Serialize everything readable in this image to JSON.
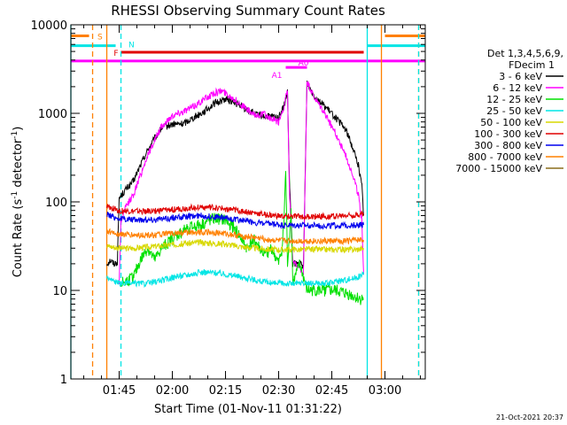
{
  "chart_data": {
    "type": "line",
    "title": "RHESSI Observing Summary Count Rates",
    "xlabel": "Start Time (01-Nov-11 01:31:22)",
    "ylabel": "Count Rate (s⁻¹ detector⁻¹)",
    "ylabel_parts": [
      "Count Rate (s",
      "-1",
      " detector",
      "-1",
      ")"
    ],
    "yscale": "log",
    "ylim": [
      1,
      10000
    ],
    "xlim": [
      "01:31:22",
      "03:11:22"
    ],
    "x_ticks": [
      "01:45",
      "02:00",
      "02:15",
      "02:30",
      "02:45",
      "03:00"
    ],
    "y_ticks": [
      "1",
      "10",
      "100",
      "1000",
      "10000"
    ],
    "legend_title": [
      "Det 1,3,4,5,6,9,",
      "FDecim 1"
    ],
    "legend_position": "right",
    "footer": "21-Oct-2021 20:37",
    "colors": {
      "3 - 6 keV": "#000000",
      "6 - 12 keV": "#ff00ff",
      "12 - 25 keV": "#00e000",
      "25 - 50 keV": "#00e5e5",
      "50 - 100 keV": "#d8d800",
      "100 - 300 keV": "#e00000",
      "300 - 800 keV": "#0000ee",
      "800 - 7000 keV": "#ff8000",
      "7000 - 15000 keV": "#8b6f1c"
    },
    "series": [
      {
        "name": "3 - 6 keV",
        "points": [
          [
            "01:41:30",
            20
          ],
          [
            "01:42:30",
            22
          ],
          [
            "01:43:30",
            20
          ],
          [
            "01:44:30",
            21
          ],
          [
            "01:45:00",
            110
          ],
          [
            "01:47:00",
            140
          ],
          [
            "01:49:00",
            170
          ],
          [
            "01:51:00",
            260
          ],
          [
            "01:53:00",
            380
          ],
          [
            "01:55:00",
            520
          ],
          [
            "01:57:00",
            680
          ],
          [
            "02:00:00",
            750
          ],
          [
            "02:03:00",
            760
          ],
          [
            "02:06:00",
            900
          ],
          [
            "02:09:00",
            1050
          ],
          [
            "02:12:00",
            1300
          ],
          [
            "02:15:00",
            1450
          ],
          [
            "02:18:00",
            1300
          ],
          [
            "02:21:00",
            1100
          ],
          [
            "02:24:00",
            950
          ],
          [
            "02:27:00",
            920
          ],
          [
            "02:30:00",
            900
          ],
          [
            "02:31:30",
            1200
          ],
          [
            "02:32:30",
            1700
          ],
          [
            "02:33:00",
            200
          ],
          [
            "02:34:00",
            20
          ],
          [
            "02:36:00",
            20
          ],
          [
            "02:37:00",
            18
          ],
          [
            "02:38:00",
            2200
          ],
          [
            "02:40:00",
            1600
          ],
          [
            "02:43:00",
            1200
          ],
          [
            "02:46:00",
            900
          ],
          [
            "02:49:00",
            650
          ],
          [
            "02:51:00",
            400
          ],
          [
            "02:52:30",
            260
          ],
          [
            "02:53:30",
            150
          ],
          [
            "02:54:00",
            70
          ]
        ]
      },
      {
        "name": "6 - 12 keV",
        "points": [
          [
            "01:45:00",
            12
          ],
          [
            "01:45:30",
            60
          ],
          [
            "01:47:00",
            90
          ],
          [
            "01:49:00",
            120
          ],
          [
            "01:51:00",
            200
          ],
          [
            "01:53:00",
            330
          ],
          [
            "01:55:00",
            500
          ],
          [
            "01:57:00",
            700
          ],
          [
            "02:00:00",
            950
          ],
          [
            "02:03:00",
            1050
          ],
          [
            "02:06:00",
            1200
          ],
          [
            "02:09:00",
            1450
          ],
          [
            "02:12:00",
            1700
          ],
          [
            "02:14:00",
            1800
          ],
          [
            "02:17:00",
            1500
          ],
          [
            "02:20:00",
            1200
          ],
          [
            "02:23:00",
            950
          ],
          [
            "02:26:00",
            980
          ],
          [
            "02:28:00",
            850
          ],
          [
            "02:30:00",
            800
          ],
          [
            "02:31:30",
            1200
          ],
          [
            "02:32:30",
            1800
          ],
          [
            "02:33:00",
            150
          ],
          [
            "02:34:00",
            20
          ],
          [
            "02:36:00",
            18
          ],
          [
            "02:37:00",
            15
          ],
          [
            "02:38:00",
            2300
          ],
          [
            "02:40:00",
            1500
          ],
          [
            "02:43:00",
            1000
          ],
          [
            "02:46:00",
            600
          ],
          [
            "02:49:00",
            330
          ],
          [
            "02:51:00",
            200
          ],
          [
            "02:52:30",
            120
          ],
          [
            "02:53:30",
            60
          ],
          [
            "02:54:00",
            15
          ]
        ]
      },
      {
        "name": "12 - 25 keV",
        "points": [
          [
            "01:45:30",
            12
          ],
          [
            "01:49:00",
            14
          ],
          [
            "01:51:00",
            22
          ],
          [
            "01:53:00",
            30
          ],
          [
            "01:55:00",
            22
          ],
          [
            "01:57:00",
            30
          ],
          [
            "02:00:00",
            38
          ],
          [
            "02:04:00",
            50
          ],
          [
            "02:08:00",
            55
          ],
          [
            "02:12:00",
            65
          ],
          [
            "02:15:00",
            62
          ],
          [
            "02:18:00",
            48
          ],
          [
            "02:21:00",
            30
          ],
          [
            "02:23:00",
            38
          ],
          [
            "02:26:00",
            25
          ],
          [
            "02:28:00",
            30
          ],
          [
            "02:30:00",
            20
          ],
          [
            "02:31:00",
            30
          ],
          [
            "02:31:30",
            60
          ],
          [
            "02:32:00",
            230
          ],
          [
            "02:32:30",
            20
          ],
          [
            "02:33:30",
            80
          ],
          [
            "02:34:00",
            12
          ],
          [
            "02:36:00",
            20
          ],
          [
            "02:38:00",
            10
          ],
          [
            "02:42:00",
            10
          ],
          [
            "02:46:00",
            10
          ],
          [
            "02:50:00",
            9
          ],
          [
            "02:53:00",
            8
          ],
          [
            "02:54:00",
            8
          ]
        ]
      },
      {
        "name": "25 - 50 keV",
        "points": [
          [
            "01:41:30",
            14
          ],
          [
            "01:45:00",
            12
          ],
          [
            "01:49:00",
            12
          ],
          [
            "01:53:00",
            12
          ],
          [
            "01:57:00",
            13
          ],
          [
            "02:00:00",
            14
          ],
          [
            "02:04:00",
            15
          ],
          [
            "02:08:00",
            16
          ],
          [
            "02:12:00",
            16
          ],
          [
            "02:16:00",
            15
          ],
          [
            "02:20:00",
            14
          ],
          [
            "02:24:00",
            13
          ],
          [
            "02:28:00",
            12
          ],
          [
            "02:32:00",
            12
          ],
          [
            "02:36:00",
            12
          ],
          [
            "02:40:00",
            12
          ],
          [
            "02:44:00",
            12
          ],
          [
            "02:48:00",
            13
          ],
          [
            "02:52:00",
            14
          ],
          [
            "02:54:00",
            15
          ]
        ]
      },
      {
        "name": "50 - 100 keV",
        "points": [
          [
            "01:41:30",
            32
          ],
          [
            "01:45:00",
            30
          ],
          [
            "01:49:00",
            30
          ],
          [
            "01:53:00",
            31
          ],
          [
            "01:57:00",
            32
          ],
          [
            "02:00:00",
            33
          ],
          [
            "02:04:00",
            34
          ],
          [
            "02:08:00",
            35
          ],
          [
            "02:12:00",
            34
          ],
          [
            "02:16:00",
            33
          ],
          [
            "02:20:00",
            31
          ],
          [
            "02:24:00",
            30
          ],
          [
            "02:28:00",
            29
          ],
          [
            "02:32:00",
            29
          ],
          [
            "02:36:00",
            29
          ],
          [
            "02:40:00",
            29
          ],
          [
            "02:44:00",
            29
          ],
          [
            "02:48:00",
            29
          ],
          [
            "02:52:00",
            29
          ],
          [
            "02:54:00",
            30
          ]
        ]
      },
      {
        "name": "100 - 300 keV",
        "points": [
          [
            "01:41:30",
            88
          ],
          [
            "01:45:00",
            80
          ],
          [
            "01:49:00",
            78
          ],
          [
            "01:53:00",
            78
          ],
          [
            "01:57:00",
            80
          ],
          [
            "02:00:00",
            82
          ],
          [
            "02:04:00",
            85
          ],
          [
            "02:08:00",
            88
          ],
          [
            "02:12:00",
            86
          ],
          [
            "02:16:00",
            82
          ],
          [
            "02:20:00",
            78
          ],
          [
            "02:24:00",
            74
          ],
          [
            "02:28:00",
            70
          ],
          [
            "02:32:00",
            68
          ],
          [
            "02:36:00",
            68
          ],
          [
            "02:40:00",
            68
          ],
          [
            "02:44:00",
            69
          ],
          [
            "02:48:00",
            70
          ],
          [
            "02:52:00",
            72
          ],
          [
            "02:54:00",
            73
          ]
        ]
      },
      {
        "name": "300 - 800 keV",
        "points": [
          [
            "01:41:30",
            72
          ],
          [
            "01:45:00",
            65
          ],
          [
            "01:49:00",
            63
          ],
          [
            "01:53:00",
            63
          ],
          [
            "01:57:00",
            64
          ],
          [
            "02:00:00",
            66
          ],
          [
            "02:04:00",
            68
          ],
          [
            "02:08:00",
            70
          ],
          [
            "02:12:00",
            68
          ],
          [
            "02:16:00",
            65
          ],
          [
            "02:20:00",
            62
          ],
          [
            "02:24:00",
            58
          ],
          [
            "02:28:00",
            56
          ],
          [
            "02:32:00",
            54
          ],
          [
            "02:36:00",
            54
          ],
          [
            "02:40:00",
            54
          ],
          [
            "02:44:00",
            54
          ],
          [
            "02:48:00",
            54
          ],
          [
            "02:52:00",
            55
          ],
          [
            "02:54:00",
            55
          ]
        ]
      },
      {
        "name": "800 - 7000 keV",
        "points": [
          [
            "01:41:30",
            47
          ],
          [
            "01:45:00",
            43
          ],
          [
            "01:49:00",
            42
          ],
          [
            "01:53:00",
            42
          ],
          [
            "01:57:00",
            43
          ],
          [
            "02:00:00",
            44
          ],
          [
            "02:04:00",
            45
          ],
          [
            "02:08:00",
            46
          ],
          [
            "02:12:00",
            45
          ],
          [
            "02:16:00",
            43
          ],
          [
            "02:20:00",
            41
          ],
          [
            "02:24:00",
            39
          ],
          [
            "02:28:00",
            37
          ],
          [
            "02:32:00",
            36
          ],
          [
            "02:36:00",
            36
          ],
          [
            "02:40:00",
            36
          ],
          [
            "02:44:00",
            36
          ],
          [
            "02:48:00",
            36
          ],
          [
            "02:52:00",
            37
          ],
          [
            "02:54:00",
            37
          ]
        ]
      },
      {
        "name": "7000 - 15000 keV",
        "points": []
      }
    ],
    "flag_bars": [
      {
        "label": "S",
        "color": "#ff8000",
        "y": 7500,
        "segments": [
          [
            "01:31:22",
            "01:36:30"
          ],
          [
            "03:00:00",
            "03:11:22"
          ]
        ]
      },
      {
        "label": "N",
        "color": "#00e5e5",
        "y": 5800,
        "segments": [
          [
            "01:31:22",
            "01:44:00"
          ],
          [
            "02:55:00",
            "03:11:22"
          ]
        ]
      },
      {
        "label": "F",
        "color": "#e00000",
        "y": 4900,
        "segments": [
          [
            "01:45:30",
            "02:54:00"
          ]
        ]
      },
      {
        "label": "",
        "color": "#ff00ff",
        "y": 3900,
        "segments": [
          [
            "01:31:22",
            "03:11:22"
          ]
        ]
      },
      {
        "label": "A1",
        "color": "#ff00ff",
        "y": 3300,
        "segments": [
          [
            "02:32:00",
            "02:36:00"
          ]
        ]
      },
      {
        "label": "A0",
        "color": "#ff00ff",
        "y": 3300,
        "segments": [
          [
            "02:36:00",
            "02:38:00"
          ]
        ]
      }
    ],
    "vertical_lines": [
      {
        "time": "01:31:22",
        "color": "#00e5e5",
        "style": "solid"
      },
      {
        "time": "01:37:30",
        "color": "#ff8000",
        "style": "dashed"
      },
      {
        "time": "01:41:30",
        "color": "#ff8000",
        "style": "solid"
      },
      {
        "time": "01:45:30",
        "color": "#00e5e5",
        "style": "dashed"
      },
      {
        "time": "02:55:00",
        "color": "#00e5e5",
        "style": "solid"
      },
      {
        "time": "02:59:00",
        "color": "#ff8000",
        "style": "solid"
      },
      {
        "time": "03:09:30",
        "color": "#ff8000",
        "style": "dashed"
      },
      {
        "time": "03:09:30",
        "color": "#00e5e5",
        "style": "dashed"
      }
    ]
  }
}
